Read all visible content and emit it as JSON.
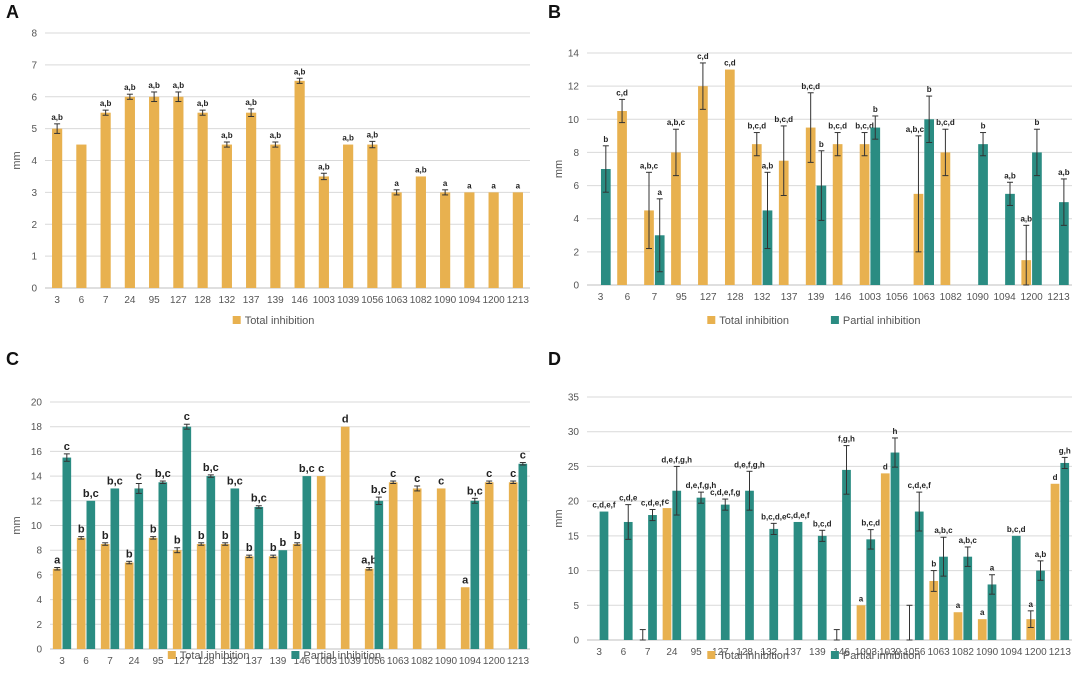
{
  "colors": {
    "total": "#E8B14F",
    "partial": "#2A8C82",
    "grid": "#d9d9d9",
    "axis": "#bfbfbf",
    "err": "#333333"
  },
  "legend": {
    "total": "Total inhibition",
    "partial": "Partial inhibition"
  },
  "chart_data": [
    {
      "panel": "A",
      "type": "bar",
      "ylabel": "mm",
      "ylim": [
        0,
        8
      ],
      "ystep": 1,
      "categories": [
        "3",
        "6",
        "7",
        "24",
        "95",
        "127",
        "128",
        "132",
        "137",
        "139",
        "146",
        "1003",
        "1039",
        "1056",
        "1063",
        "1082",
        "1090",
        "1094",
        "1200",
        "1213"
      ],
      "series": [
        {
          "name": "Total inhibition",
          "key": "total",
          "values": [
            5,
            4.5,
            5.5,
            6,
            6,
            6,
            5.5,
            4.5,
            5.5,
            4.5,
            6.5,
            3.5,
            4.5,
            4.5,
            3,
            3.5,
            3,
            3,
            3,
            3
          ],
          "errors": [
            0.15,
            0,
            0.08,
            0.08,
            0.15,
            0.15,
            0.08,
            0.08,
            0.12,
            0.08,
            0.08,
            0.1,
            0,
            0.1,
            0.08,
            0,
            0.08,
            0,
            0,
            0
          ],
          "labels": [
            "a,b",
            "",
            "a,b",
            "a,b",
            "a,b",
            "a,b",
            "a,b",
            "a,b",
            "a,b",
            "a,b",
            "a,b",
            "a,b",
            "a,b",
            "a,b",
            "a",
            "a,b",
            "a",
            "a",
            "a",
            "a"
          ]
        }
      ]
    },
    {
      "panel": "B",
      "type": "bar",
      "ylabel": "mm",
      "ylim": [
        0,
        14
      ],
      "ystep": 2,
      "categories": [
        "3",
        "6",
        "7",
        "95",
        "127",
        "128",
        "132",
        "137",
        "139",
        "146",
        "1003",
        "1056",
        "1063",
        "1082",
        "1090",
        "1094",
        "1200",
        "1213"
      ],
      "series": [
        {
          "name": "Total inhibition",
          "key": "total",
          "values": [
            null,
            10.5,
            4.5,
            8,
            12,
            13,
            8.5,
            7.5,
            9.5,
            8.5,
            8.5,
            null,
            5.5,
            8,
            null,
            null,
            1.5,
            null
          ],
          "errors": [
            0,
            0.7,
            2.3,
            1.4,
            1.4,
            0,
            0.7,
            2.1,
            2.1,
            0.7,
            0.7,
            0,
            3.5,
            1.4,
            0,
            0,
            2.1,
            0
          ],
          "labels": [
            "",
            "c,d",
            "a,b,c",
            "a,b,c",
            "c,d",
            "c,d",
            "b,c,d",
            "b,c,d",
            "b,c,d",
            "b,c,d",
            "b,c,d",
            "",
            "a,b,c,d",
            "b,c,d",
            "",
            "",
            "a,b",
            ""
          ]
        },
        {
          "name": "Partial inhibition",
          "key": "partial",
          "values": [
            7,
            null,
            3,
            null,
            null,
            null,
            4.5,
            null,
            6,
            null,
            9.5,
            null,
            10,
            null,
            8.5,
            5.5,
            8,
            5
          ],
          "errors": [
            1.4,
            0,
            2.2,
            0,
            0,
            0,
            2.3,
            0,
            2.1,
            0,
            0.7,
            0,
            1.4,
            0,
            0.7,
            0.7,
            1.4,
            1.4
          ],
          "labels": [
            "b",
            "",
            "a",
            "",
            "",
            "",
            "a,b",
            "",
            "b",
            "",
            "b",
            "",
            "b",
            "",
            "b",
            "a,b",
            "b",
            "a,b"
          ]
        }
      ]
    },
    {
      "panel": "C",
      "type": "bar",
      "ylabel": "mm",
      "ylim": [
        0,
        20
      ],
      "ystep": 2,
      "categories": [
        "3",
        "6",
        "7",
        "24",
        "95",
        "127",
        "128",
        "132",
        "137",
        "139",
        "146",
        "1003",
        "1039",
        "1056",
        "1063",
        "1082",
        "1090",
        "1094",
        "1200",
        "1213"
      ],
      "series": [
        {
          "name": "Total inhibition",
          "key": "total",
          "values": [
            6.5,
            9,
            8.5,
            7,
            9,
            8,
            8.5,
            8.5,
            7.5,
            7.5,
            8.5,
            14,
            18,
            6.5,
            13.5,
            13,
            13,
            5,
            13.5,
            13.5
          ],
          "errors": [
            0.1,
            0.1,
            0.1,
            0.1,
            0.1,
            0.2,
            0.1,
            0.1,
            0.1,
            0.1,
            0.1,
            0,
            0,
            0.1,
            0.1,
            0.2,
            0,
            0,
            0.1,
            0.1
          ],
          "labels": [
            "a",
            "b",
            "b",
            "b",
            "b",
            "b",
            "b",
            "b",
            "b",
            "b",
            "b",
            "c",
            "d",
            "a,b",
            "c",
            "c",
            "c",
            "a",
            "c",
            "c"
          ]
        },
        {
          "name": "Partial inhibition",
          "key": "partial",
          "values": [
            15.5,
            12,
            13,
            13,
            13.5,
            18,
            14,
            13,
            11.5,
            8,
            14,
            null,
            null,
            12,
            null,
            null,
            null,
            12,
            null,
            15
          ],
          "errors": [
            0.3,
            0,
            0,
            0.4,
            0.1,
            0.2,
            0.1,
            0,
            0.1,
            0,
            0,
            0,
            0,
            0.3,
            0,
            0,
            0,
            0.2,
            0,
            0.1
          ],
          "labels": [
            "c",
            "b,c",
            "b,c",
            "c",
            "b,c",
            "c",
            "b,c",
            "b,c",
            "b,c",
            "b",
            "b,c",
            "",
            "",
            "b,c",
            "",
            "",
            "",
            "b,c",
            "",
            "c"
          ]
        }
      ]
    },
    {
      "panel": "D",
      "type": "bar",
      "ylabel": "mm",
      "ylim": [
        0,
        35
      ],
      "ystep": 5,
      "categories": [
        "3",
        "6",
        "7",
        "24",
        "95",
        "127",
        "128",
        "132",
        "137",
        "139",
        "146",
        "1003",
        "1039",
        "1056",
        "1063",
        "1082",
        "1090",
        "1094",
        "1200",
        "1213"
      ],
      "series": [
        {
          "name": "Total inhibition",
          "key": "total",
          "values": [
            null,
            null,
            0,
            19,
            null,
            null,
            null,
            null,
            null,
            null,
            0,
            5,
            24,
            0,
            8.5,
            4,
            3,
            null,
            3,
            22.5
          ],
          "errors": [
            0,
            0,
            1.5,
            0,
            0,
            0,
            0,
            0,
            0,
            0,
            1.5,
            0,
            0,
            5,
            1.5,
            0,
            0,
            0,
            1.2,
            0
          ],
          "labels": [
            "",
            "",
            "",
            "c",
            "",
            "",
            "",
            "",
            "",
            "",
            "",
            "a",
            "d",
            "",
            "b",
            "a",
            "a",
            "",
            "a",
            "d"
          ]
        },
        {
          "name": "Partial inhibition",
          "key": "partial",
          "values": [
            18.5,
            17,
            18,
            21.5,
            20.5,
            19.5,
            21.5,
            16,
            17,
            15,
            24.5,
            14.5,
            27,
            18.5,
            12,
            12,
            8,
            15,
            10,
            25.5
          ],
          "errors": [
            0,
            2.5,
            0.8,
            3.5,
            0.8,
            0.8,
            2.8,
            0.8,
            0,
            0.8,
            3.5,
            1.4,
            2.1,
            2.8,
            2.8,
            1.4,
            1.4,
            0,
            1.4,
            0.8
          ],
          "labels": [
            "c,d,e,f",
            "c,d,e",
            "c,d,e,f",
            "d,e,f,g,h",
            "d,e,f,g,h",
            "c,d,e,f,g",
            "d,e,f,g,h",
            "b,c,d,e",
            "c,d,e,f",
            "b,c,d",
            "f,g,h",
            "b,c,d",
            "h",
            "c,d,e,f",
            "a,b,c",
            "a,b,c",
            "a",
            "b,c,d",
            "a,b",
            "g,h"
          ]
        }
      ]
    }
  ]
}
